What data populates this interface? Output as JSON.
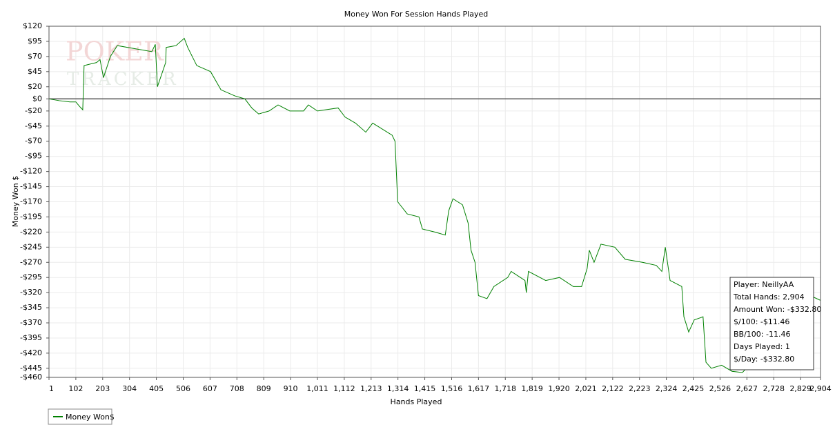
{
  "chart_data": {
    "type": "line",
    "title": "Money Won For Session Hands Played",
    "x_label": "Hands Played",
    "y_label": "Money Won $",
    "watermark": [
      "POKER",
      "TRACKER"
    ],
    "x": [
      1,
      40,
      80,
      102,
      115,
      128,
      133,
      180,
      193,
      206,
      232,
      258,
      336,
      388,
      401,
      409,
      440,
      442,
      479,
      510,
      523,
      557,
      609,
      648,
      700,
      738,
      764,
      790,
      829,
      863,
      907,
      959,
      977,
      1011,
      1089,
      1115,
      1154,
      1193,
      1219,
      1292,
      1303,
      1313,
      1349,
      1393,
      1406,
      1453,
      1492,
      1505,
      1521,
      1557,
      1578,
      1589,
      1604,
      1617,
      1649,
      1675,
      1727,
      1740,
      1792,
      1797,
      1805,
      1870,
      1922,
      1974,
      2005,
      2026,
      2034,
      2052,
      2078,
      2130,
      2169,
      2234,
      2286,
      2307,
      2320,
      2338,
      2382,
      2390,
      2408,
      2429,
      2462,
      2473,
      2493,
      2532,
      2571,
      2610,
      2880,
      2904
    ],
    "series": [
      {
        "name": "Money Won$",
        "color": "#008000",
        "values": [
          0,
          -3,
          -5,
          -5,
          -12,
          -18,
          55,
          60,
          65,
          35,
          70,
          88,
          82,
          78,
          90,
          20,
          60,
          85,
          88,
          100,
          85,
          55,
          45,
          15,
          5,
          0,
          -15,
          -25,
          -20,
          -10,
          -20,
          -20,
          -10,
          -20,
          -15,
          -30,
          -40,
          -55,
          -40,
          -60,
          -70,
          -170,
          -190,
          -195,
          -215,
          -220,
          -225,
          -185,
          -165,
          -175,
          -205,
          -250,
          -270,
          -325,
          -330,
          -310,
          -295,
          -285,
          -300,
          -320,
          -285,
          -300,
          -295,
          -310,
          -310,
          -280,
          -250,
          -270,
          -240,
          -245,
          -265,
          -270,
          -275,
          -285,
          -245,
          -300,
          -310,
          -360,
          -385,
          -365,
          -360,
          -435,
          -445,
          -440,
          -450,
          -452,
          -328,
          -332.8
        ]
      }
    ],
    "xlim": [
      1,
      2904
    ],
    "ylim": [
      -460,
      120
    ],
    "xticks": [
      1,
      102,
      203,
      304,
      405,
      506,
      607,
      708,
      809,
      910,
      {
        "value": 1011,
        "label": "1,011"
      },
      {
        "value": 1112,
        "label": "1,112"
      },
      {
        "value": 1213,
        "label": "1,213"
      },
      {
        "value": 1314,
        "label": "1,314"
      },
      {
        "value": 1415,
        "label": "1,415"
      },
      {
        "value": 1516,
        "label": "1,516"
      },
      {
        "value": 1617,
        "label": "1,617"
      },
      {
        "value": 1718,
        "label": "1,718"
      },
      {
        "value": 1819,
        "label": "1,819"
      },
      {
        "value": 1920,
        "label": "1,920"
      },
      {
        "value": 2021,
        "label": "2,021"
      },
      {
        "value": 2122,
        "label": "2,122"
      },
      {
        "value": 2223,
        "label": "2,223"
      },
      {
        "value": 2324,
        "label": "2,324"
      },
      {
        "value": 2425,
        "label": "2,425"
      },
      {
        "value": 2526,
        "label": "2,526"
      },
      {
        "value": 2627,
        "label": "2,627"
      },
      {
        "value": 2728,
        "label": "2,728"
      },
      {
        "value": 2829,
        "label": "2,829"
      },
      {
        "value": 2904,
        "label": "2,904"
      }
    ],
    "yticks": [
      {
        "value": 120,
        "label": "$120"
      },
      {
        "value": 95,
        "label": "$95"
      },
      {
        "value": 70,
        "label": "$70"
      },
      {
        "value": 45,
        "label": "$45"
      },
      {
        "value": 20,
        "label": "$20"
      },
      {
        "value": 0,
        "label": "$0"
      },
      {
        "value": -20,
        "label": "-$20"
      },
      {
        "value": -45,
        "label": "-$45"
      },
      {
        "value": -70,
        "label": "-$70"
      },
      {
        "value": -95,
        "label": "-$95"
      },
      {
        "value": -120,
        "label": "-$120"
      },
      {
        "value": -145,
        "label": "-$145"
      },
      {
        "value": -170,
        "label": "-$170"
      },
      {
        "value": -195,
        "label": "-$195"
      },
      {
        "value": -220,
        "label": "-$220"
      },
      {
        "value": -245,
        "label": "-$245"
      },
      {
        "value": -270,
        "label": "-$270"
      },
      {
        "value": -295,
        "label": "-$295"
      },
      {
        "value": -320,
        "label": "-$320"
      },
      {
        "value": -345,
        "label": "-$345"
      },
      {
        "value": -370,
        "label": "-$370"
      },
      {
        "value": -395,
        "label": "-$395"
      },
      {
        "value": -420,
        "label": "-$420"
      },
      {
        "value": -445,
        "label": "-$445"
      },
      {
        "value": -460,
        "label": "-$460"
      }
    ],
    "grid": true,
    "info_box": [
      "Player: NeillyAA",
      "Total Hands: 2,904",
      "Amount Won: -$332.80",
      "$/100: -$11.46",
      "BB/100: -11.46",
      "Days Played: 1",
      "$/Day: -$332.80"
    ]
  }
}
